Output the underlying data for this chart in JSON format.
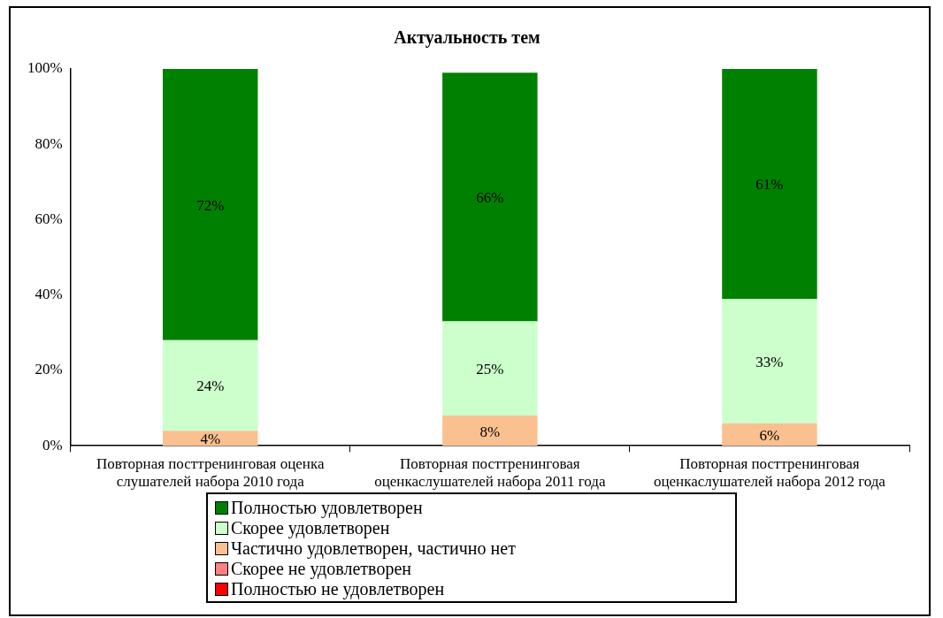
{
  "chart_data": {
    "type": "bar",
    "title": "Актуальность тем",
    "stacked": true,
    "categories": [
      "Повторная посттренинговая оценка слушателей набора 2010 года",
      "Повторная посттренинговая оценкаслушателей набора 2011 года",
      "Повторная посттренинговая оценкаслушателей набора 2012 года"
    ],
    "series": [
      {
        "name": "Частично удовлетворен, частично нет",
        "color": "#fac090",
        "values": [
          4,
          8,
          6
        ],
        "value_labels": [
          "4%",
          "8%",
          "6%"
        ]
      },
      {
        "name": "Скорее удовлетворен",
        "color": "#ccffcc",
        "values": [
          24,
          25,
          33
        ],
        "value_labels": [
          "24%",
          "25%",
          "33%"
        ]
      },
      {
        "name": "Полностью удовлетворен",
        "color": "#008000",
        "values": [
          72,
          66,
          61
        ],
        "value_labels": [
          "72%",
          "66%",
          "61%"
        ]
      },
      {
        "name": "Скорее не удовлетворен",
        "color": "#ff8080",
        "values": [
          0,
          0,
          0
        ],
        "value_labels": [
          null,
          null,
          null
        ]
      },
      {
        "name": "Полностью не удовлетворен",
        "color": "#ff0000",
        "values": [
          0,
          0,
          0
        ],
        "value_labels": [
          null,
          null,
          null
        ]
      }
    ],
    "ylim": [
      0,
      100
    ],
    "yticks": [
      {
        "value": 0,
        "label": "0%"
      },
      {
        "value": 20,
        "label": "20%"
      },
      {
        "value": 40,
        "label": "40%"
      },
      {
        "value": 60,
        "label": "60%"
      },
      {
        "value": 80,
        "label": "80%"
      },
      {
        "value": 100,
        "label": "100%"
      }
    ],
    "grid": false,
    "legend": "bottom"
  }
}
